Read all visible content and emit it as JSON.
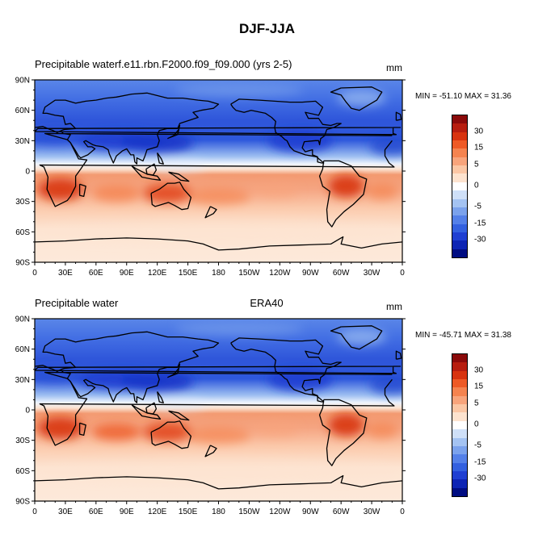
{
  "figure_title": "DJF-JJA",
  "panels": [
    {
      "left_title": "Precipitable waterf.e11.rbn.F2000.f09_f09.000 (yrs 2-5)",
      "center_title": "",
      "units": "mm",
      "minmax": "MIN = -51.10 MAX =  31.36"
    },
    {
      "left_title": "Precipitable water",
      "center_title": "ERA40",
      "units": "mm",
      "minmax": "MIN = -45.71 MAX =  31.38"
    }
  ],
  "lat_ticks": [
    "90N",
    "60N",
    "30N",
    "0",
    "30S",
    "60S",
    "90S"
  ],
  "lon_ticks": [
    "0",
    "30E",
    "60E",
    "90E",
    "120E",
    "150E",
    "180",
    "150W",
    "120W",
    "90W",
    "60W",
    "30W",
    "0"
  ],
  "colorbar": {
    "labels": [
      "30",
      "15",
      "5",
      "0",
      "-5",
      "-15",
      "-30"
    ],
    "colors": [
      "#8b0a0a",
      "#b71d0f",
      "#d8330f",
      "#ee5a26",
      "#f5834f",
      "#f8a47b",
      "#fbc7a5",
      "#fde3cf",
      "#ffffff",
      "#cfe0f8",
      "#a4c3f2",
      "#7ba2ec",
      "#5480e8",
      "#3360df",
      "#1f3fd2",
      "#0d24b4",
      "#000d82"
    ]
  },
  "chart_data": [
    {
      "type": "heatmap",
      "title": "Precipitable waterf.e11.rbn.F2000.f09_f09.000 (yrs 2-5)",
      "units": "mm",
      "min": -51.1,
      "max": 31.36,
      "x_ticks": [
        "0",
        "30E",
        "60E",
        "90E",
        "120E",
        "150E",
        "180",
        "150W",
        "120W",
        "90W",
        "60W",
        "30W",
        "0"
      ],
      "y_ticks": [
        "90N",
        "60N",
        "30N",
        "0",
        "30S",
        "60S",
        "90S"
      ],
      "colorbar_labels": [
        30,
        15,
        5,
        0,
        -5,
        -15,
        -30
      ]
    },
    {
      "type": "heatmap",
      "title": "Precipitable water",
      "center_title": "ERA40",
      "units": "mm",
      "min": -45.71,
      "max": 31.38,
      "x_ticks": [
        "0",
        "30E",
        "60E",
        "90E",
        "120E",
        "150E",
        "180",
        "150W",
        "120W",
        "90W",
        "60W",
        "30W",
        "0"
      ],
      "y_ticks": [
        "90N",
        "60N",
        "30N",
        "0",
        "30S",
        "60S",
        "90S"
      ],
      "colorbar_labels": [
        30,
        15,
        5,
        0,
        -5,
        -15,
        -30
      ]
    }
  ]
}
